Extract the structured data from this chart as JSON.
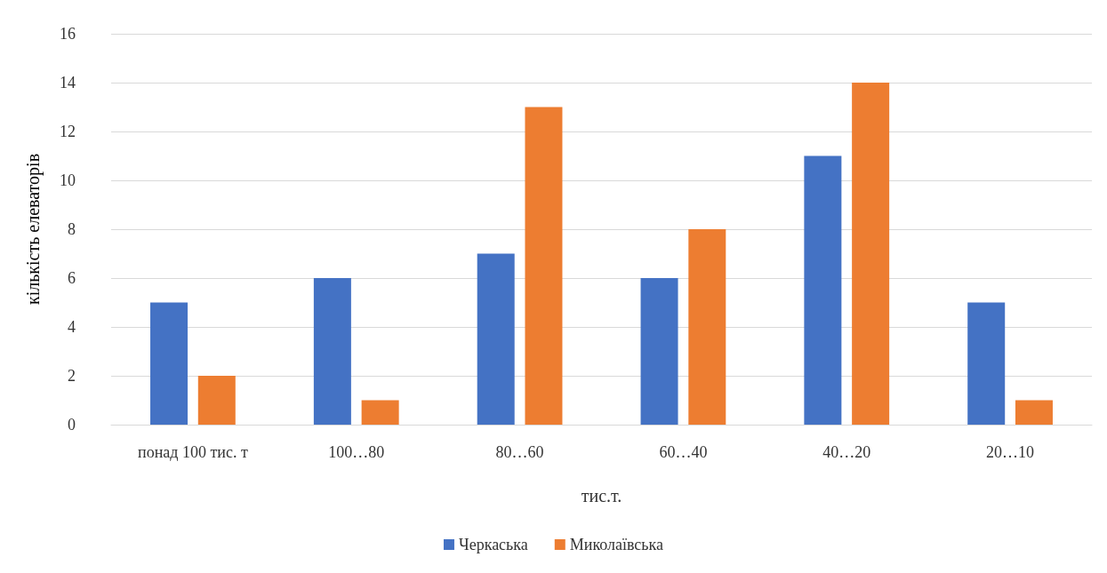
{
  "chart_data": {
    "type": "bar",
    "xlabel": "тис.т.",
    "ylabel": "кількість елеваторів",
    "categories": [
      "понад 100 тис. т",
      "100…80",
      "80…60",
      "60…40",
      "40…20",
      "20…10"
    ],
    "series": [
      {
        "name": "Черкаська",
        "color": "#4472c4",
        "values": [
          5,
          6,
          7,
          6,
          11,
          5
        ]
      },
      {
        "name": "Миколаївська",
        "color": "#ed7d31",
        "values": [
          2,
          1,
          13,
          8,
          14,
          1
        ]
      }
    ],
    "ylim": [
      0,
      16
    ],
    "yticks": [
      0,
      2,
      4,
      6,
      8,
      10,
      12,
      14,
      16
    ],
    "grid": "y",
    "legend": "bottom"
  }
}
